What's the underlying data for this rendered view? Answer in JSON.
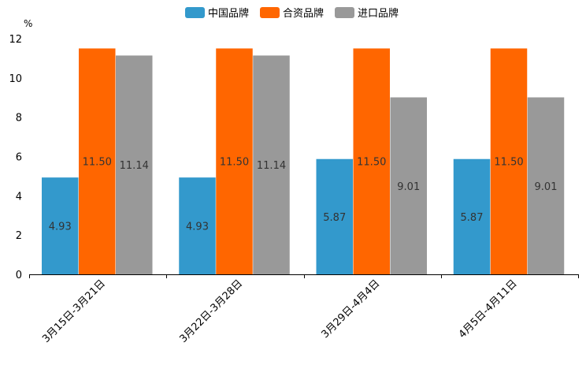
{
  "chart_data": {
    "type": "bar",
    "title": "",
    "ylabel": "%",
    "xlabel": "",
    "ylim": [
      0,
      12
    ],
    "yticks": [
      0,
      2,
      4,
      6,
      8,
      10,
      12
    ],
    "grid": false,
    "legend_position": "top-center",
    "categories": [
      "3月15日-3月21日",
      "3月22日-3月28日",
      "3月29日-4月4日",
      "4月5日-4月11日"
    ],
    "series": [
      {
        "name": "中国品牌",
        "color": "#3399CC",
        "values": [
          4.93,
          4.93,
          5.87,
          5.87
        ],
        "labels": [
          "4.93",
          "4.93",
          "5.87",
          "5.87"
        ]
      },
      {
        "name": "合资品牌",
        "color": "#FF6600",
        "values": [
          11.5,
          11.5,
          11.5,
          11.5
        ],
        "labels": [
          "11.50",
          "11.50",
          "11.50",
          "11.50"
        ]
      },
      {
        "name": "进口品牌",
        "color": "#999999",
        "values": [
          11.14,
          11.14,
          9.01,
          9.01
        ],
        "labels": [
          "11.14",
          "11.14",
          "9.01",
          "9.01"
        ]
      }
    ]
  }
}
